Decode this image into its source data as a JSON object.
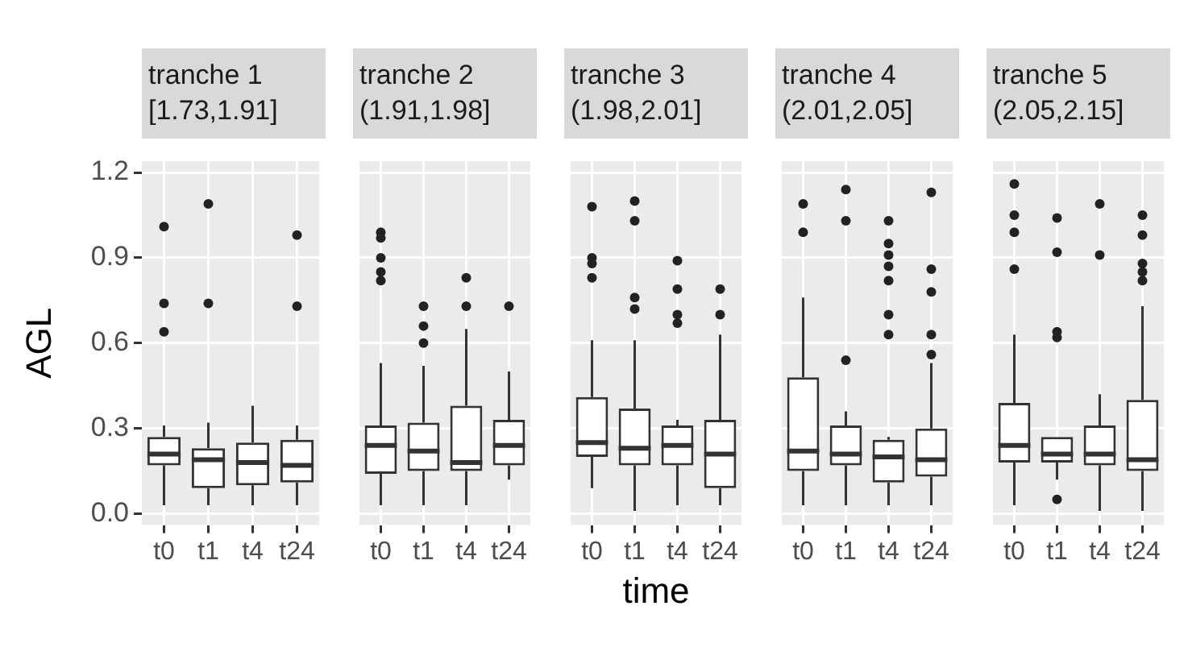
{
  "chart_data": [
    {
      "type": "box",
      "title": "tranche 1",
      "subtitle": "[1.73,1.91]",
      "ylabel": "AGL",
      "categories": [
        "t0",
        "t1",
        "t4",
        "t24"
      ],
      "ylim": [
        -0.04,
        1.24
      ],
      "yticks": [
        {
          "value": 0,
          "label": "0.0"
        },
        {
          "value": 0.3,
          "label": "0.3"
        },
        {
          "value": 0.6,
          "label": "0.6"
        },
        {
          "value": 0.9,
          "label": "0.9"
        },
        {
          "value": 1.2,
          "label": "1.2"
        }
      ],
      "grid": true,
      "boxes": [
        {
          "low": 0.03,
          "q1": 0.17,
          "median": 0.21,
          "q3": 0.27,
          "high": 0.31,
          "outliers": [
            1.01,
            0.74,
            0.64
          ]
        },
        {
          "low": 0.03,
          "q1": 0.09,
          "median": 0.19,
          "q3": 0.23,
          "high": 0.32,
          "outliers": [
            1.09,
            0.74
          ]
        },
        {
          "low": 0.03,
          "q1": 0.1,
          "median": 0.18,
          "q3": 0.25,
          "high": 0.38
        },
        {
          "low": 0.03,
          "q1": 0.11,
          "median": 0.17,
          "q3": 0.26,
          "high": 0.31,
          "outliers": [
            0.98,
            0.73
          ]
        }
      ]
    },
    {
      "type": "box",
      "title": "tranche 2",
      "subtitle": "(1.91,1.98]",
      "categories": [
        "t0",
        "t1",
        "t4",
        "t24"
      ],
      "ylim": [
        -0.04,
        1.24
      ],
      "yticks": [
        0,
        0.3,
        0.6,
        0.9,
        1.2
      ],
      "grid": true,
      "tick_labels": "x",
      "boxes": [
        {
          "low": 0.03,
          "q1": 0.14,
          "median": 0.24,
          "q3": 0.31,
          "high": 0.53,
          "outliers": [
            0.99,
            0.97,
            0.9,
            0.85,
            0.82
          ]
        },
        {
          "low": 0.03,
          "q1": 0.15,
          "median": 0.22,
          "q3": 0.32,
          "high": 0.52,
          "outliers": [
            0.73,
            0.66,
            0.6
          ]
        },
        {
          "low": 0.03,
          "q1": 0.15,
          "median": 0.18,
          "q3": 0.38,
          "high": 0.65,
          "outliers": [
            0.83,
            0.73
          ]
        },
        {
          "low": 0.12,
          "q1": 0.17,
          "median": 0.24,
          "q3": 0.33,
          "high": 0.5,
          "outliers": [
            0.73
          ]
        }
      ]
    },
    {
      "type": "box",
      "title": "tranche 3",
      "subtitle": "(1.98,2.01]",
      "xlabel": "time",
      "categories": [
        "t0",
        "t1",
        "t4",
        "t24"
      ],
      "ylim": [
        -0.04,
        1.24
      ],
      "yticks": [
        0,
        0.3,
        0.6,
        0.9,
        1.2
      ],
      "grid": true,
      "tick_labels": "x",
      "boxes": [
        {
          "low": 0.09,
          "q1": 0.2,
          "median": 0.25,
          "q3": 0.41,
          "high": 0.61,
          "outliers": [
            1.08,
            0.9,
            0.88,
            0.83
          ]
        },
        {
          "low": 0.01,
          "q1": 0.17,
          "median": 0.23,
          "q3": 0.37,
          "high": 0.61,
          "outliers": [
            1.1,
            1.03,
            0.76,
            0.72
          ]
        },
        {
          "low": 0.03,
          "q1": 0.17,
          "median": 0.24,
          "q3": 0.31,
          "high": 0.33,
          "outliers": [
            0.89,
            0.79,
            0.7,
            0.67
          ]
        },
        {
          "low": 0.03,
          "q1": 0.09,
          "median": 0.21,
          "q3": 0.33,
          "high": 0.63,
          "outliers": [
            0.79,
            0.7
          ]
        }
      ]
    },
    {
      "type": "box",
      "title": "tranche 4",
      "subtitle": "(2.01,2.05]",
      "categories": [
        "t0",
        "t1",
        "t4",
        "t24"
      ],
      "ylim": [
        -0.04,
        1.24
      ],
      "yticks": [
        0,
        0.3,
        0.6,
        0.9,
        1.2
      ],
      "grid": true,
      "tick_labels": "x",
      "boxes": [
        {
          "low": 0.03,
          "q1": 0.15,
          "median": 0.22,
          "q3": 0.48,
          "high": 0.76,
          "outliers": [
            1.09,
            0.99
          ]
        },
        {
          "low": 0.03,
          "q1": 0.17,
          "median": 0.21,
          "q3": 0.31,
          "high": 0.36,
          "outliers": [
            1.14,
            1.03,
            0.54
          ]
        },
        {
          "low": 0.03,
          "q1": 0.11,
          "median": 0.2,
          "q3": 0.26,
          "high": 0.27,
          "outliers": [
            1.03,
            0.95,
            0.91,
            0.87,
            0.82,
            0.7,
            0.63
          ]
        },
        {
          "low": 0.03,
          "q1": 0.13,
          "median": 0.19,
          "q3": 0.3,
          "high": 0.53,
          "outliers": [
            1.13,
            0.86,
            0.78,
            0.63,
            0.56
          ]
        }
      ]
    },
    {
      "type": "box",
      "title": "tranche 5",
      "subtitle": "(2.05,2.15]",
      "categories": [
        "t0",
        "t1",
        "t4",
        "t24"
      ],
      "ylim": [
        -0.04,
        1.24
      ],
      "yticks": [
        0,
        0.3,
        0.6,
        0.9,
        1.2
      ],
      "grid": true,
      "tick_labels": "x",
      "boxes": [
        {
          "low": 0.03,
          "q1": 0.18,
          "median": 0.24,
          "q3": 0.39,
          "high": 0.63,
          "outliers": [
            1.16,
            1.05,
            0.99,
            0.86
          ]
        },
        {
          "low": 0.12,
          "q1": 0.18,
          "median": 0.21,
          "q3": 0.27,
          "high": 0.27,
          "outliers": [
            1.04,
            0.92,
            0.64,
            0.62,
            0.05
          ]
        },
        {
          "low": 0.01,
          "q1": 0.17,
          "median": 0.21,
          "q3": 0.31,
          "high": 0.42,
          "outliers": [
            1.09,
            0.91
          ]
        },
        {
          "low": 0.01,
          "q1": 0.15,
          "median": 0.19,
          "q3": 0.4,
          "high": 0.73,
          "outliers": [
            1.05,
            0.98,
            0.88,
            0.85,
            0.82
          ]
        }
      ]
    }
  ]
}
